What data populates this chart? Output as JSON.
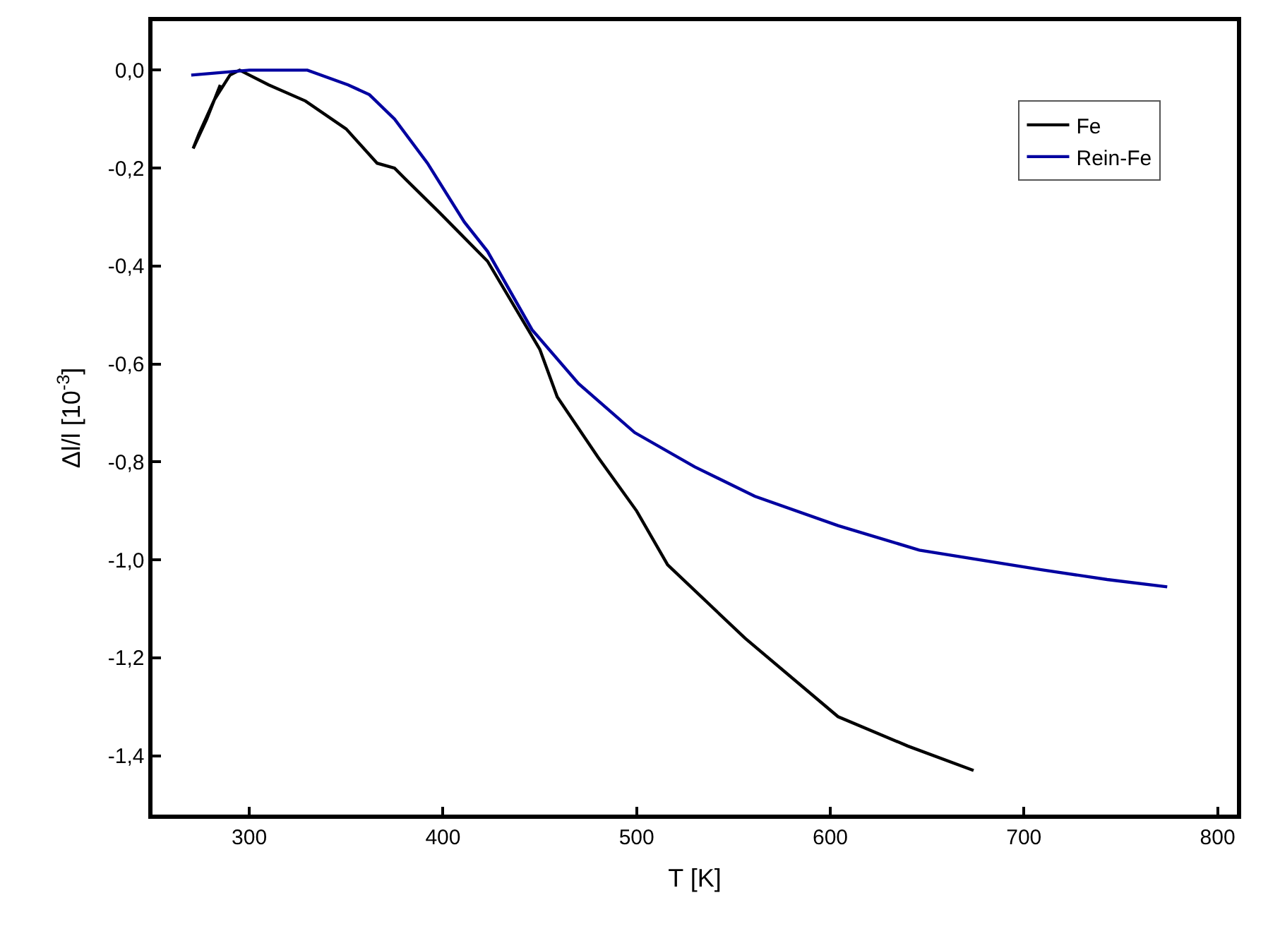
{
  "chart_data": {
    "type": "line",
    "xlabel": "T [K]",
    "ylabel": "Δl/l [10$^{-3}$]",
    "xlim": [
      250,
      810
    ],
    "xticks": [
      300,
      400,
      500,
      600,
      700,
      800
    ],
    "ylim": [
      -1.52,
      0.1
    ],
    "yticks": [
      {
        "value": 0,
        "label": "0,0"
      },
      {
        "value": -0.2,
        "label": "-0,2"
      },
      {
        "value": -0.4,
        "label": "-0,4"
      },
      {
        "value": -0.6,
        "label": "-0,6"
      },
      {
        "value": -0.8,
        "label": "-0,8"
      },
      {
        "value": -1.0,
        "label": "-1,0"
      },
      {
        "value": -1.2,
        "label": "-1,2"
      },
      {
        "value": -1.4,
        "label": "-1,4"
      }
    ],
    "legend": "top right",
    "marker": "none",
    "line_style": "solid",
    "series": [
      {
        "name": "Fe",
        "color": "#000000",
        "x": [
          285,
          278,
          271,
          274,
          282,
          290,
          295,
          310,
          329,
          350,
          366,
          375,
          380,
          398,
          423,
          450,
          459,
          480,
          500,
          516,
          556,
          604,
          640,
          674
        ],
        "values": [
          -0.03,
          -0.1,
          -0.16,
          -0.13,
          -0.06,
          -0.01,
          0.0,
          -0.03,
          -0.063,
          -0.12,
          -0.19,
          -0.2,
          -0.22,
          -0.29,
          -0.39,
          -0.57,
          -0.667,
          -0.79,
          -0.9,
          -1.01,
          -1.16,
          -1.32,
          -1.38,
          -1.43
        ]
      },
      {
        "name": "Rein-Fe",
        "color": "#0000a0",
        "x": [
          270,
          300,
          330,
          351,
          362,
          375,
          392,
          411,
          423,
          446,
          470,
          499,
          530,
          561,
          604,
          646,
          709,
          743,
          774
        ],
        "values": [
          -0.01,
          0.0,
          0.0,
          -0.03,
          -0.05,
          -0.1,
          -0.19,
          -0.31,
          -0.37,
          -0.53,
          -0.64,
          -0.74,
          -0.81,
          -0.87,
          -0.93,
          -0.98,
          -1.02,
          -1.04,
          -1.055
        ]
      }
    ]
  }
}
